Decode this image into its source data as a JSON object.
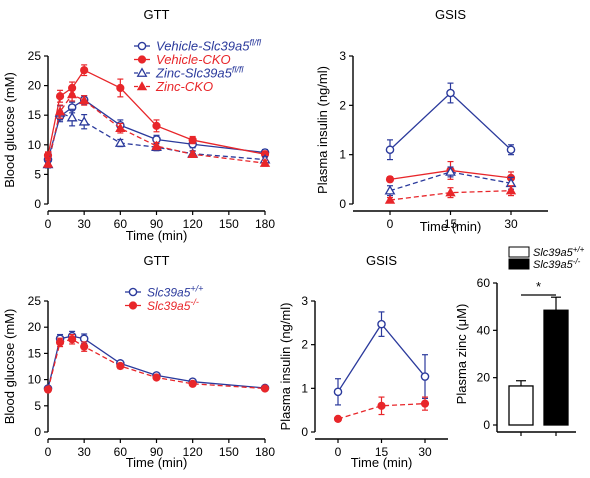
{
  "chart_data": [
    {
      "type": "line",
      "title": "GTT",
      "xlabel": "Time (min)",
      "ylabel": "Blood glucose (mM)",
      "xlim": [
        0,
        180
      ],
      "ylim": [
        0,
        25
      ],
      "xticks": [
        0,
        30,
        60,
        90,
        120,
        150,
        180
      ],
      "yticks": [
        0,
        5,
        10,
        15,
        20,
        25
      ],
      "legend_position": "top-right",
      "series": [
        {
          "name_main": "Vehicle-",
          "name_gene": "Slc39a5",
          "name_sup": "fl/fl",
          "color": "#2b3a9c",
          "marker": "circle-open",
          "dash": "solid",
          "x": [
            0,
            10,
            20,
            30,
            60,
            90,
            120,
            180
          ],
          "y": [
            7.5,
            14.8,
            16.3,
            17.6,
            13.3,
            10.9,
            10.1,
            8.7
          ],
          "err": [
            0.6,
            0.9,
            0.9,
            0.7,
            0.9,
            0.7,
            0.6,
            0.5
          ]
        },
        {
          "name_main": "Vehicle-CKO",
          "name_gene": "",
          "name_sup": "",
          "color": "#e8262a",
          "marker": "circle-filled",
          "dash": "solid",
          "x": [
            0,
            10,
            20,
            30,
            60,
            90,
            120,
            180
          ],
          "y": [
            8.2,
            18.2,
            19.6,
            22.6,
            19.6,
            13.2,
            10.8,
            8.4
          ],
          "err": [
            0.6,
            1.0,
            1.0,
            0.9,
            1.5,
            1.0,
            0.6,
            0.5
          ]
        },
        {
          "name_main": "Zinc-",
          "name_gene": "Slc39a5",
          "name_sup": "fl/fl",
          "color": "#2b3a9c",
          "marker": "triangle-open",
          "dash": "dashed",
          "x": [
            0,
            10,
            20,
            30,
            60,
            90,
            120,
            180
          ],
          "y": [
            6.7,
            15.4,
            14.6,
            13.9,
            10.3,
            9.6,
            8.5,
            7.5
          ],
          "err": [
            0.6,
            1.2,
            1.4,
            1.2,
            0.6,
            0.6,
            0.5,
            0.5
          ]
        },
        {
          "name_main": "Zinc-CKO",
          "name_gene": "",
          "name_sup": "",
          "color": "#e8262a",
          "marker": "triangle-filled",
          "dash": "dashed",
          "x": [
            0,
            10,
            20,
            30,
            60,
            90,
            120,
            180
          ],
          "y": [
            6.8,
            15.6,
            18.5,
            17.5,
            12.8,
            9.8,
            8.4,
            6.9
          ],
          "err": [
            0.6,
            1.1,
            1.1,
            0.8,
            0.8,
            0.6,
            0.5,
            0.5
          ]
        }
      ]
    },
    {
      "type": "line",
      "title": "GSIS",
      "xlabel": "Time (min)",
      "ylabel": "Plasma insulin (ng/ml)",
      "xlim": [
        0,
        30
      ],
      "ylim": [
        0,
        3
      ],
      "xticks": [
        0,
        15,
        30
      ],
      "yticks": [
        0,
        1,
        2,
        3
      ],
      "series": [
        {
          "color": "#2b3a9c",
          "marker": "circle-open",
          "dash": "solid",
          "x": [
            0,
            15,
            30
          ],
          "y": [
            1.1,
            2.25,
            1.1
          ],
          "err": [
            0.2,
            0.2,
            0.1
          ]
        },
        {
          "color": "#e8262a",
          "marker": "circle-filled",
          "dash": "solid",
          "x": [
            0,
            15,
            30
          ],
          "y": [
            0.5,
            0.68,
            0.53
          ],
          "err": [
            0.05,
            0.18,
            0.12
          ]
        },
        {
          "color": "#2b3a9c",
          "marker": "triangle-open",
          "dash": "dashed",
          "x": [
            0,
            15,
            30
          ],
          "y": [
            0.27,
            0.65,
            0.42
          ],
          "err": [
            0.1,
            0.1,
            0.12
          ]
        },
        {
          "color": "#e8262a",
          "marker": "triangle-filled",
          "dash": "dashed",
          "x": [
            0,
            15,
            30
          ],
          "y": [
            0.08,
            0.23,
            0.27
          ],
          "err": [
            0.05,
            0.1,
            0.1
          ]
        }
      ]
    },
    {
      "type": "line",
      "title": "GTT",
      "xlabel": "Time (min)",
      "ylabel": "Blood glucose (mM)",
      "xlim": [
        0,
        180
      ],
      "ylim": [
        0,
        25
      ],
      "xticks": [
        0,
        30,
        60,
        90,
        120,
        150,
        180
      ],
      "yticks": [
        0,
        5,
        10,
        15,
        20,
        25
      ],
      "legend_position": "top-right",
      "series": [
        {
          "name_gene": "Slc39a5",
          "name_sup": "+/+",
          "color": "#2b3a9c",
          "marker": "circle-open",
          "dash": "solid",
          "x": [
            0,
            10,
            20,
            30,
            60,
            90,
            120,
            180
          ],
          "y": [
            8.3,
            17.8,
            18.3,
            17.8,
            13.1,
            10.8,
            9.6,
            8.4
          ],
          "err": [
            0.4,
            0.8,
            0.9,
            0.9,
            0.5,
            0.4,
            0.4,
            0.3
          ]
        },
        {
          "name_gene": "Slc39a5",
          "name_sup": "-/-",
          "color": "#e8262a",
          "marker": "circle-filled",
          "dash": "dashed",
          "x": [
            0,
            10,
            20,
            30,
            60,
            90,
            120,
            180
          ],
          "y": [
            8.1,
            17.1,
            17.7,
            16.3,
            12.6,
            10.4,
            9.2,
            8.3
          ],
          "err": [
            0.4,
            0.8,
            0.9,
            0.9,
            0.5,
            0.4,
            0.4,
            0.3
          ]
        }
      ]
    },
    {
      "type": "line",
      "title": "GSIS",
      "xlabel": "Time (min)",
      "ylabel": "Plasma insulin (ng/ml)",
      "xlim": [
        0,
        30
      ],
      "ylim": [
        0,
        3
      ],
      "xticks": [
        0,
        15,
        30
      ],
      "yticks": [
        0,
        1,
        2,
        3
      ],
      "series": [
        {
          "color": "#2b3a9c",
          "marker": "circle-open",
          "dash": "solid",
          "x": [
            0,
            15,
            30
          ],
          "y": [
            0.92,
            2.47,
            1.27
          ],
          "err": [
            0.3,
            0.28,
            0.5
          ]
        },
        {
          "color": "#e8262a",
          "marker": "circle-filled",
          "dash": "dashed",
          "x": [
            0,
            15,
            30
          ],
          "y": [
            0.3,
            0.6,
            0.65
          ],
          "err": [
            0.05,
            0.2,
            0.15
          ]
        }
      ]
    },
    {
      "type": "bar",
      "title": "",
      "ylabel": "Plasma zinc (μM)",
      "ylim": [
        0,
        60
      ],
      "yticks": [
        0,
        20,
        40,
        60
      ],
      "categories": [
        "Slc39a5 +/+",
        "Slc39a5 -/-"
      ],
      "values": [
        16.5,
        48.5
      ],
      "err": [
        2.2,
        5.5
      ],
      "fills": [
        "#ffffff",
        "#000000"
      ],
      "significance": "*",
      "legend": [
        {
          "gene": "Slc39a5",
          "sup": "+/+",
          "fill": "#ffffff"
        },
        {
          "gene": "Slc39a5",
          "sup": "-/-",
          "fill": "#000000"
        }
      ]
    }
  ]
}
